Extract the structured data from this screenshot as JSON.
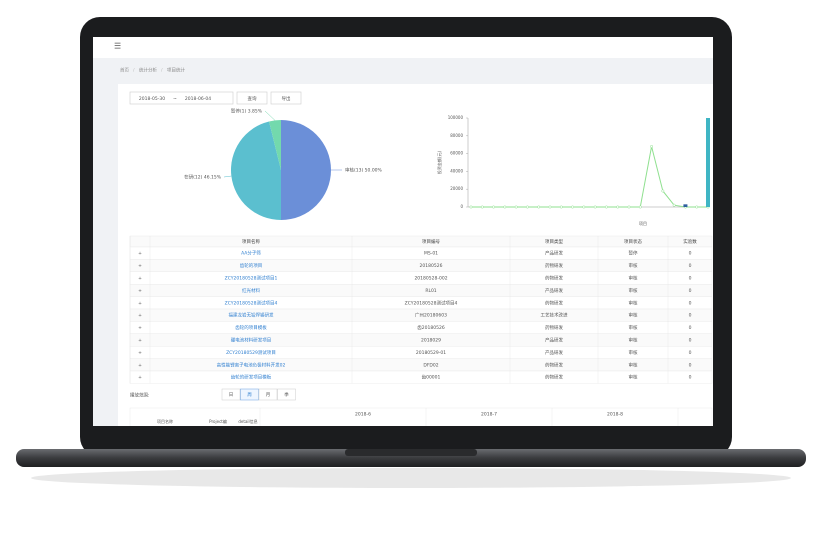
{
  "breadcrumb": [
    "首页",
    "统计分析",
    "项目统计"
  ],
  "filters": {
    "start_date": "2018-05-30",
    "separator": "~",
    "end_date": "2018-06-04",
    "query_button": "查询",
    "export_button": "导出"
  },
  "chart_data": [
    {
      "type": "pie",
      "categories": [
        "审核",
        "在研",
        "暂停"
      ],
      "values": [
        13,
        12,
        1
      ],
      "value_labels": [
        "审核(13) 50.00%",
        "在研(12) 46.15%",
        "暂停(1) 3.85%"
      ],
      "colors": [
        "#6b8fd8",
        "#5bbfcf",
        "#73d9ad"
      ]
    },
    {
      "type": "line",
      "y_label": "投资金额(元)",
      "x_label": "项目",
      "categories": [
        null,
        null,
        null,
        null,
        null,
        null,
        null,
        null,
        null,
        null,
        null,
        null,
        null,
        null,
        null,
        null,
        null,
        null,
        null,
        null,
        null,
        null
      ],
      "series": [
        {
          "type": "line",
          "color": "#8fe08f",
          "values": [
            0,
            0,
            0,
            0,
            0,
            0,
            0,
            0,
            0,
            0,
            0,
            0,
            0,
            0,
            0,
            0,
            68000,
            18000,
            2000,
            0,
            0,
            0
          ]
        },
        {
          "type": "bar",
          "color": "#2f5f9f",
          "values": [
            null,
            null,
            null,
            null,
            null,
            null,
            null,
            null,
            null,
            null,
            null,
            null,
            null,
            null,
            null,
            null,
            null,
            null,
            null,
            3000,
            null,
            null
          ]
        },
        {
          "type": "bar",
          "color": "#3fb5c4",
          "values": [
            null,
            null,
            null,
            null,
            null,
            null,
            null,
            null,
            null,
            null,
            null,
            null,
            null,
            null,
            null,
            null,
            null,
            null,
            null,
            null,
            null,
            100000
          ]
        }
      ],
      "ylim": [
        0,
        100000
      ],
      "yticks": [
        0,
        20000,
        40000,
        60000,
        80000,
        100000
      ]
    }
  ],
  "table": {
    "expand_label": "+",
    "columns": [
      "项目名称",
      "项目编号",
      "项目类型",
      "项目状态",
      "实验数"
    ],
    "rows": [
      [
        "AA分子筛",
        "MS-01",
        "产品研发",
        "暂停",
        0
      ],
      [
        "齿轮的项目",
        "20180526",
        "药物研发",
        "审核",
        0
      ],
      [
        "ZCY20180528测试项目1",
        "20180528-002",
        "药物研发",
        "审核",
        0
      ],
      [
        "红光材料",
        "RL01",
        "产品研发",
        "审核",
        0
      ],
      [
        "ZCY20180528测试项目4",
        "ZCY20180528测试项目4",
        "药物研发",
        "审核",
        0
      ],
      [
        "福建龙岩无铅焊锡研发",
        "广州20180603",
        "工艺技术改进",
        "审核",
        0
      ],
      [
        "齿轮的项目模板",
        "齿20180526",
        "药物研发",
        "审核",
        0
      ],
      [
        "硼电池材料研发项目",
        "2018029",
        "产品研发",
        "审核",
        0
      ],
      [
        "ZCY20180529测试项目",
        "20180529-01",
        "产品研发",
        "审核",
        0
      ],
      [
        "高性能锂离子电池负极材料开发02",
        "DFD02",
        "药物研发",
        "审核",
        0
      ],
      [
        "齿轮的研发项目模板",
        "齿00001",
        "药物研发",
        "审核",
        0
      ]
    ]
  },
  "playback": {
    "label": "播放范围:",
    "buttons": [
      "日",
      "周",
      "月",
      "季"
    ]
  },
  "timeline": {
    "months": [
      "2018-6",
      "2018-7",
      "2018-8"
    ],
    "columns": [
      "项目名称",
      "Project编",
      "detail信息"
    ]
  }
}
